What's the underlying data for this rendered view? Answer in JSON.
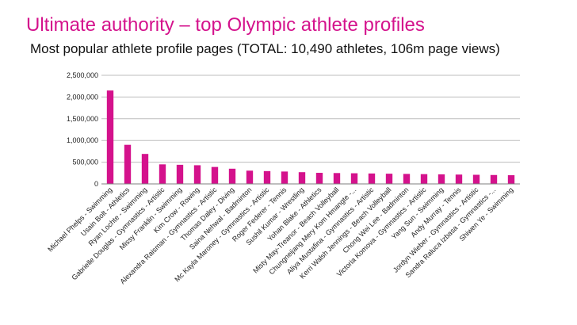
{
  "slide": {
    "title": "Ultimate authority – top Olympic athlete profiles",
    "subtitle": "Most popular athlete profile pages (TOTAL: 10,490 athletes, 106m page views)"
  },
  "colors": {
    "title": "#d4128c",
    "bar": "#d4128c",
    "grid": "#bdbdbd",
    "axis": "#7f7f7f"
  },
  "chart_data": {
    "type": "bar",
    "title": "",
    "xlabel": "",
    "ylabel": "",
    "ylim": [
      0,
      2500000
    ],
    "yticks": [
      0,
      500000,
      1000000,
      1500000,
      2000000,
      2500000
    ],
    "ytick_labels": [
      "0",
      "500,000",
      "1,000,000",
      "1,500,000",
      "2,000,000",
      "2,500,000"
    ],
    "grid": true,
    "legend": "none",
    "categories": [
      "Michael Phelps - Swimming",
      "Usain Bolt - Athletics",
      "Ryan Lochte - Swimming",
      "Gabrielle Douglas - Gymnastics - Artistic",
      "Missy Franklin - Swimming",
      "Kim Crow - Rowing",
      "Alexandra Raisman - Gymnastics - Artistic",
      "Thomas Daley - Diving",
      "Saina Nehwal - Badminton",
      "Mc Kayla Maroney - Gymnastics - Artistic",
      "Roger Federer - Tennis",
      "Sushil Kumar - Wrestling",
      "Yohan Blake - Athletics",
      "Misty May-Treanor - Beach Volleyball",
      "Chungneijang Mery Kom Hmangte -...",
      "Aliya Mustafina - Gymnastics - Artistic",
      "Kerri Walsh Jennings - Beach Volleyball",
      "Chong Wei Lee - Badminton",
      "Victoria Komova - Gymnastics - Artistic",
      "Yang Sun - Swimming",
      "Andy Murray - Tennis",
      "Jordyn Wieber - Gymnastics - Artistic",
      "Sandra Raluca Izbasa - Gymnastics -...",
      "Shiwen Ye - Swimming"
    ],
    "values": [
      2150000,
      900000,
      690000,
      450000,
      440000,
      430000,
      390000,
      350000,
      305000,
      295000,
      285000,
      270000,
      255000,
      250000,
      245000,
      240000,
      235000,
      230000,
      225000,
      220000,
      215000,
      210000,
      205000,
      200000
    ]
  }
}
